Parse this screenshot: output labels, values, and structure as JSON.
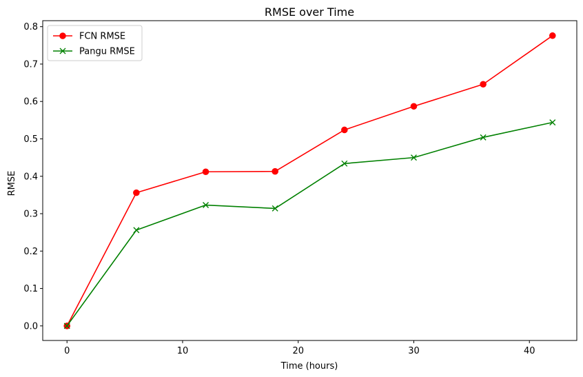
{
  "chart_data": {
    "type": "line",
    "title": "RMSE over Time",
    "xlabel": "Time (hours)",
    "ylabel": "RMSE",
    "xlim": [
      -2.1,
      44.1
    ],
    "ylim": [
      -0.039,
      0.816
    ],
    "xticks": [
      0,
      10,
      20,
      30,
      40
    ],
    "yticks": [
      0.0,
      0.1,
      0.2,
      0.3,
      0.4,
      0.5,
      0.6,
      0.7,
      0.8
    ],
    "xtick_labels": [
      "0",
      "10",
      "20",
      "30",
      "40"
    ],
    "ytick_labels": [
      "0.0",
      "0.1",
      "0.2",
      "0.3",
      "0.4",
      "0.5",
      "0.6",
      "0.7",
      "0.8"
    ],
    "grid": false,
    "legend_position": "top-left",
    "x": [
      0,
      6,
      12,
      18,
      24,
      30,
      36,
      42
    ],
    "series": [
      {
        "name": "FCN RMSE",
        "color": "#ff0000",
        "marker": "circle",
        "values": [
          0.0,
          0.356,
          0.412,
          0.413,
          0.524,
          0.587,
          0.646,
          0.776
        ]
      },
      {
        "name": "Pangu RMSE",
        "color": "#008000",
        "marker": "x",
        "values": [
          0.0,
          0.256,
          0.323,
          0.314,
          0.434,
          0.45,
          0.504,
          0.544
        ]
      }
    ]
  }
}
